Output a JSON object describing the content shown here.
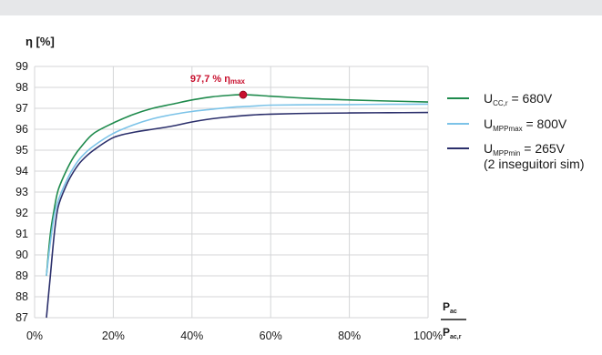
{
  "chart_data": {
    "type": "line",
    "ylabel": "η [%]",
    "xlabel_num": "P",
    "xlabel_num_sub": "ac",
    "xlabel_den": "P",
    "xlabel_den_sub": "ac,r",
    "xlim": [
      0,
      100
    ],
    "ylim": [
      87,
      99
    ],
    "x_ticks": [
      "0%",
      "20%",
      "40%",
      "60%",
      "80%",
      "100%"
    ],
    "x_tick_values": [
      0,
      20,
      40,
      60,
      80,
      100
    ],
    "y_ticks": [
      87,
      88,
      89,
      90,
      91,
      92,
      93,
      94,
      95,
      96,
      97,
      98,
      99
    ],
    "grid": true,
    "legend_position": "right",
    "annotation": {
      "x": 53,
      "y": 97.65,
      "text": "97,7 % η",
      "sub": "max",
      "color": "#c8102e"
    },
    "series": [
      {
        "name_main": "U",
        "name_sub": "CC,r",
        "name_rest": " = 680V",
        "name_extra": "",
        "color": "#1e8a4c",
        "points": [
          [
            3,
            89.0
          ],
          [
            4,
            91.0
          ],
          [
            5,
            92.2
          ],
          [
            6,
            93.1
          ],
          [
            8,
            94.0
          ],
          [
            10,
            94.7
          ],
          [
            12,
            95.2
          ],
          [
            15,
            95.8
          ],
          [
            20,
            96.3
          ],
          [
            25,
            96.7
          ],
          [
            30,
            97.0
          ],
          [
            35,
            97.2
          ],
          [
            40,
            97.4
          ],
          [
            45,
            97.55
          ],
          [
            50,
            97.63
          ],
          [
            53,
            97.65
          ],
          [
            55,
            97.64
          ],
          [
            60,
            97.58
          ],
          [
            70,
            97.47
          ],
          [
            80,
            97.4
          ],
          [
            90,
            97.35
          ],
          [
            100,
            97.3
          ]
        ]
      },
      {
        "name_main": "U",
        "name_sub": "MPPmax",
        "name_rest": " = 800V",
        "name_extra": "",
        "color": "#7cc3e8",
        "points": [
          [
            3,
            89.0
          ],
          [
            4,
            90.6
          ],
          [
            5,
            91.9
          ],
          [
            6,
            92.6
          ],
          [
            8,
            93.5
          ],
          [
            10,
            94.2
          ],
          [
            12,
            94.7
          ],
          [
            15,
            95.2
          ],
          [
            20,
            95.8
          ],
          [
            25,
            96.2
          ],
          [
            30,
            96.5
          ],
          [
            35,
            96.7
          ],
          [
            40,
            96.85
          ],
          [
            45,
            96.95
          ],
          [
            50,
            97.05
          ],
          [
            55,
            97.1
          ],
          [
            60,
            97.15
          ],
          [
            70,
            97.17
          ],
          [
            80,
            97.18
          ],
          [
            90,
            97.19
          ],
          [
            100,
            97.2
          ]
        ]
      },
      {
        "name_main": "U",
        "name_sub": "MPPmin",
        "name_rest": " = 265V",
        "name_extra": "(2 inseguitori sim)",
        "color": "#2b2f6b",
        "points": [
          [
            3,
            87.0
          ],
          [
            4,
            89.0
          ],
          [
            5,
            91.0
          ],
          [
            6,
            92.3
          ],
          [
            8,
            93.3
          ],
          [
            10,
            94.0
          ],
          [
            12,
            94.5
          ],
          [
            15,
            95.0
          ],
          [
            20,
            95.6
          ],
          [
            25,
            95.85
          ],
          [
            30,
            96.0
          ],
          [
            35,
            96.15
          ],
          [
            40,
            96.35
          ],
          [
            45,
            96.5
          ],
          [
            50,
            96.6
          ],
          [
            55,
            96.68
          ],
          [
            60,
            96.72
          ],
          [
            70,
            96.76
          ],
          [
            80,
            96.78
          ],
          [
            90,
            96.79
          ],
          [
            100,
            96.8
          ]
        ]
      }
    ]
  }
}
